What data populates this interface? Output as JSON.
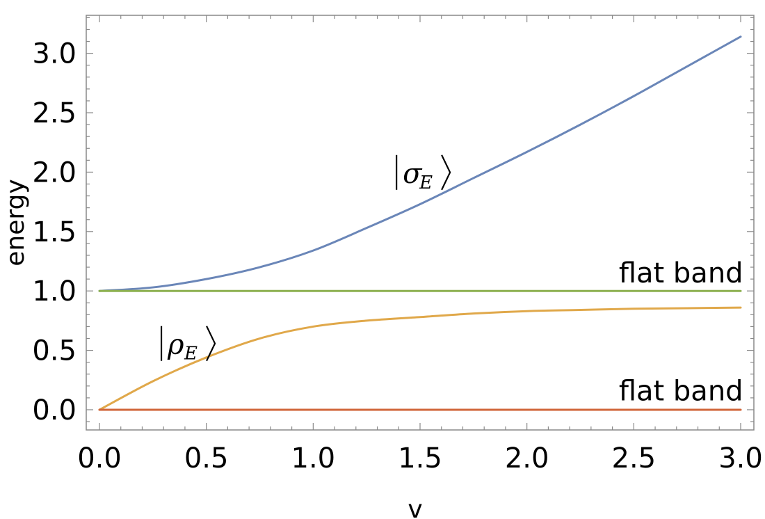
{
  "chart_data": {
    "type": "line",
    "title": "",
    "xlabel": "v",
    "ylabel": "energy",
    "xlim": [
      0,
      3.0
    ],
    "ylim": [
      -0.17,
      3.32
    ],
    "x_ticks": [
      "0.0",
      "0.5",
      "1.0",
      "1.5",
      "2.0",
      "2.5",
      "3.0"
    ],
    "y_ticks": [
      "0.0",
      "0.5",
      "1.0",
      "1.5",
      "2.0",
      "2.5",
      "3.0"
    ],
    "grid": false,
    "series": [
      {
        "name": "|σE⟩",
        "color": "#6A86B8",
        "x": [
          0,
          0.25,
          0.5,
          0.75,
          1.0,
          1.25,
          1.5,
          1.75,
          2.0,
          2.25,
          2.5,
          2.75,
          3.0
        ],
        "y": [
          1.0,
          1.03,
          1.1,
          1.2,
          1.34,
          1.53,
          1.73,
          1.95,
          2.17,
          2.4,
          2.64,
          2.89,
          3.14
        ]
      },
      {
        "name": "",
        "color": "#8CB04F",
        "x": [
          0,
          3.0
        ],
        "y": [
          1.0,
          1.0
        ]
      },
      {
        "name": "|ρE⟩",
        "color": "#E0A84A",
        "x": [
          0,
          0.25,
          0.5,
          0.75,
          1.0,
          1.25,
          1.5,
          1.75,
          2.0,
          2.25,
          2.5,
          2.75,
          3.0
        ],
        "y": [
          0.0,
          0.24,
          0.44,
          0.6,
          0.7,
          0.75,
          0.78,
          0.81,
          0.83,
          0.84,
          0.85,
          0.855,
          0.86
        ]
      },
      {
        "name": "",
        "color": "#D0663A",
        "x": [
          0,
          3.0
        ],
        "y": [
          0.0,
          0.0
        ]
      }
    ],
    "annotations": [
      {
        "id": "sigma",
        "symbol": "σ",
        "subscript": "E",
        "x": 1.38,
        "y": 1.91
      },
      {
        "id": "rho",
        "symbol": "ρ",
        "subscript": "E",
        "x": 0.28,
        "y": 0.47
      },
      {
        "id": "flat-upper",
        "text": "flat band",
        "x": 2.43,
        "y": 1.07
      },
      {
        "id": "flat-lower",
        "text": "flat band",
        "x": 2.43,
        "y": 0.08
      }
    ]
  }
}
